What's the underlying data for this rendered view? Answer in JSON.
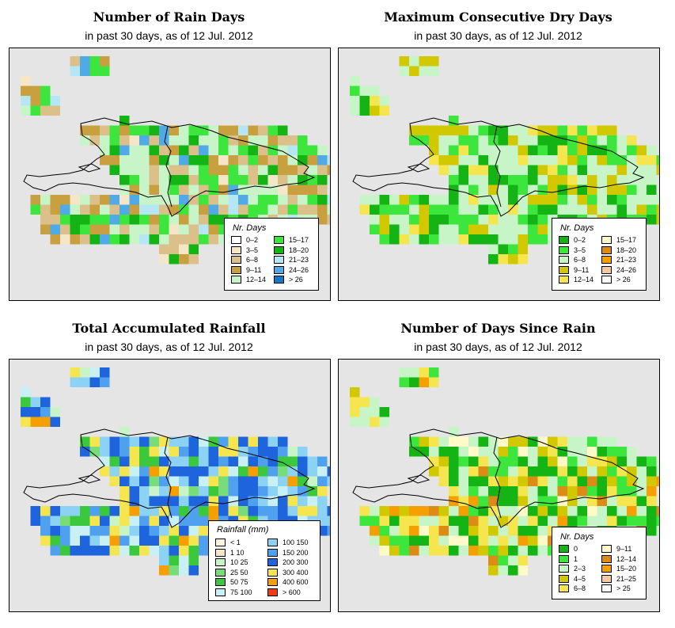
{
  "panels": [
    {
      "id": "rain_days",
      "title": "Number of Rain Days",
      "subtitle": "in past 30 days, as of  12 Jul. 2012",
      "legend_title": "Nr. Days",
      "legend_items": [
        {
          "label": "0–2",
          "color": "#ffffff"
        },
        {
          "label": "3–5",
          "color": "#f5e6c8"
        },
        {
          "label": "6–8",
          "color": "#dcc08a"
        },
        {
          "label": "9–11",
          "color": "#c8a040"
        },
        {
          "label": "12–14",
          "color": "#c8f5c8"
        },
        {
          "label": "15–17",
          "color": "#3ce63c"
        },
        {
          "label": "18–20",
          "color": "#14b414"
        },
        {
          "label": "21–23",
          "color": "#b4e6f5"
        },
        {
          "label": "24–26",
          "color": "#50aae6"
        },
        {
          "label": "> 26",
          "color": "#1478c8"
        }
      ]
    },
    {
      "id": "max_dry",
      "title": "Maximum Consecutive Dry Days",
      "subtitle": "in past 30 days, as of  12 Jul. 2012",
      "legend_title": "Nr. Days",
      "legend_items": [
        {
          "label": "0–2",
          "color": "#14b414"
        },
        {
          "label": "3–5",
          "color": "#3ce63c"
        },
        {
          "label": "6–8",
          "color": "#c8f5c8"
        },
        {
          "label": "9–11",
          "color": "#d2c800"
        },
        {
          "label": "12–14",
          "color": "#f5e650"
        },
        {
          "label": "15–17",
          "color": "#fffac8"
        },
        {
          "label": "18–20",
          "color": "#dc8c14"
        },
        {
          "label": "21–23",
          "color": "#f5a000"
        },
        {
          "label": "24–26",
          "color": "#f5c8a0"
        },
        {
          "label": "> 26",
          "color": "#ffffff"
        }
      ]
    },
    {
      "id": "total_rain",
      "title": "Total Accumulated Rainfall",
      "subtitle": "in past 30 days, as of  12 Jul. 2012",
      "legend_title": "Rainfall (mm)",
      "legend_items": [
        {
          "label": "< 1",
          "color": "#fff5dc"
        },
        {
          "label": "1   10",
          "color": "#f5e6c8"
        },
        {
          "label": "10   25",
          "color": "#c8f5c8"
        },
        {
          "label": "25   50",
          "color": "#78dc78"
        },
        {
          "label": "50   75",
          "color": "#3cc83c"
        },
        {
          "label": "75   100",
          "color": "#c8f0f5"
        },
        {
          "label": "100   150",
          "color": "#8cd2f5"
        },
        {
          "label": "150   200",
          "color": "#50a0f0"
        },
        {
          "label": "200   300",
          "color": "#1e64dc"
        },
        {
          "label": "300   400",
          "color": "#f5e650"
        },
        {
          "label": "400   600",
          "color": "#f5a000"
        },
        {
          "label": "> 600",
          "color": "#f03c14"
        }
      ]
    },
    {
      "id": "days_since",
      "title": "Number of Days Since Rain",
      "subtitle": "in past 30 days, as of  12 Jul. 2012",
      "legend_title": "Nr. Days",
      "legend_items": [
        {
          "label": "0",
          "color": "#14b414"
        },
        {
          "label": "1",
          "color": "#3ce63c"
        },
        {
          "label": "2–3",
          "color": "#c8f5c8"
        },
        {
          "label": "4–5",
          "color": "#d2c800"
        },
        {
          "label": "6–8",
          "color": "#f5e650"
        },
        {
          "label": "9–11",
          "color": "#fffac8"
        },
        {
          "label": "12–14",
          "color": "#dc8c14"
        },
        {
          "label": "15–20",
          "color": "#f5a000"
        },
        {
          "label": "21–25",
          "color": "#f5c8a0"
        },
        {
          "label": "> 25",
          "color": "#ffffff"
        }
      ]
    }
  ]
}
